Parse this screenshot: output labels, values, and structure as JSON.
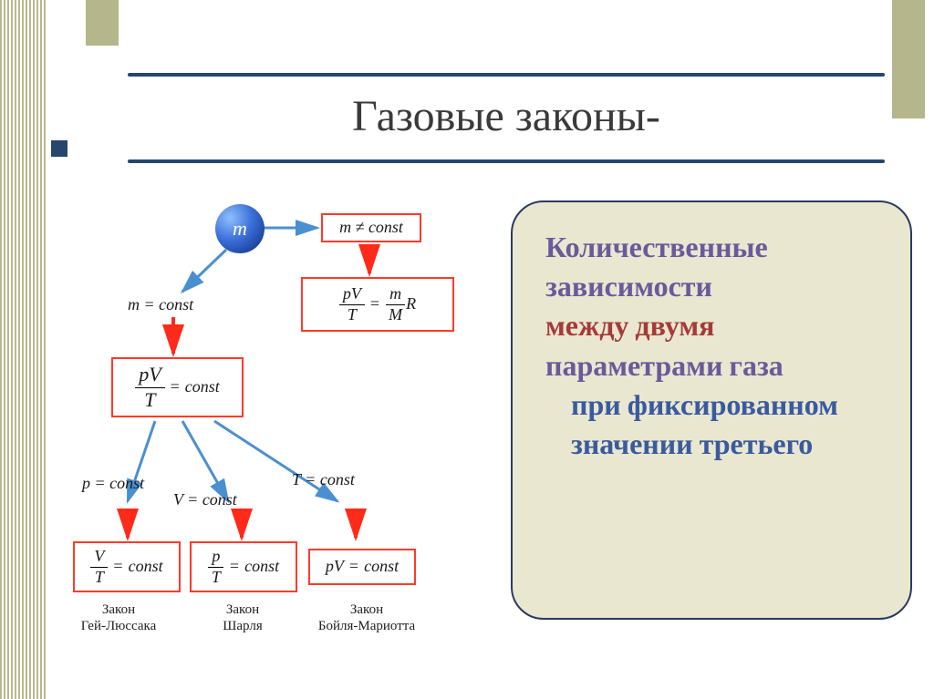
{
  "title": "Газовые законы-",
  "colors": {
    "title_line": "#26466d",
    "bullet": "#26466d",
    "vbar": "#b6b68c",
    "stripe_a": "#b8b890",
    "stripe_b": "#ffffff",
    "node_border": "#ff3a2a",
    "arrow_red": "#ff2a1a",
    "arrow_blue": "#4a90d0",
    "textbox_bg": "#e9e7cf",
    "textbox_border": "#2a3a60",
    "text_purple": "#6a5a9c",
    "text_red": "#a63a3a",
    "text_blue": "#3a5aa0"
  },
  "sphere": {
    "label": "m"
  },
  "conditions": {
    "m_ne_const": "m ≠ const",
    "m_eq_const": "m = const",
    "p_const": "p = const",
    "v_const": "V = const",
    "t_const": "T = const"
  },
  "formulas": {
    "ideal_gas": {
      "lhs_num": "pV",
      "lhs_den": "T",
      "rhs_num": "m",
      "rhs_den": "M",
      "tail": " R"
    },
    "pv_t_const": {
      "num": "pV",
      "den": "T",
      "rhs": "const"
    },
    "v_t_const": {
      "num": "V",
      "den": "T",
      "rhs": "const"
    },
    "p_t_const": {
      "num": "p",
      "den": "T",
      "rhs": "const"
    },
    "pv_const": {
      "lhs": "pV",
      "rhs": "const"
    }
  },
  "laws": {
    "gaylussac": "Закон\nГей-Люссака",
    "charles": "Закон\nШарля",
    "boyle": "Закон\nБойля-Мариотта"
  },
  "definition": {
    "l1": "Количественные",
    "l2": "зависимости",
    "l3": "между двумя",
    "l4": "параметрами газа",
    "l5": "при фиксированном значении третьего"
  }
}
